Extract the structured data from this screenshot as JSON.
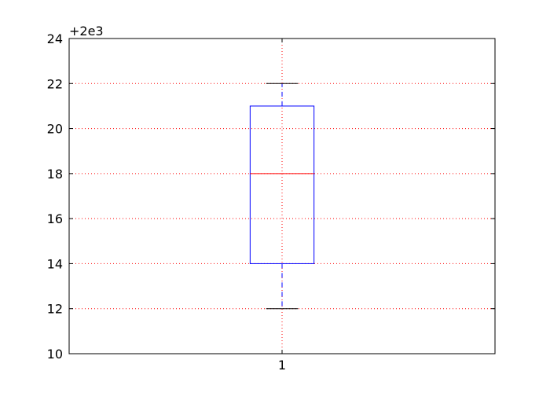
{
  "chart_data": {
    "type": "box",
    "offset_label": "+2e3",
    "ylim": [
      10,
      24
    ],
    "y_ticks": [
      10,
      12,
      14,
      16,
      18,
      20,
      22,
      24
    ],
    "y_tick_labels": [
      "10",
      "12",
      "14",
      "16",
      "18",
      "20",
      "22",
      "24"
    ],
    "categories": [
      "1"
    ],
    "boxes": [
      {
        "category": "1",
        "whisker_low": 12,
        "q1": 14,
        "median": 18,
        "q3": 21,
        "whisker_high": 22
      }
    ],
    "grid": true,
    "colors": {
      "box": "#0000ff",
      "median": "#ff0000",
      "whisker": "#0000ff",
      "cap": "#000000",
      "grid": "#ff0000",
      "axes": "#000000"
    }
  }
}
